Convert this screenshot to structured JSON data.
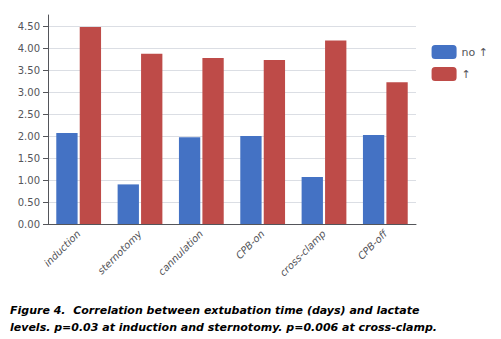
{
  "chart_data": {
    "type": "bar",
    "categories": [
      "induction",
      "sternotomy",
      "cannulation",
      "CPB-on",
      "cross-clamp",
      "CPB-off"
    ],
    "series": [
      {
        "name": "no ↑",
        "color": "#4472C4",
        "values": [
          2.07,
          0.9,
          1.97,
          2.0,
          1.07,
          2.02
        ]
      },
      {
        "name": "↑",
        "color": "#BE4B48",
        "values": [
          4.48,
          3.87,
          3.77,
          3.73,
          4.17,
          3.22
        ]
      }
    ],
    "ylim": [
      0,
      4.75
    ],
    "yticks": [
      {
        "value": 0.0,
        "label": "0.00"
      },
      {
        "value": 0.5,
        "label": "0.50"
      },
      {
        "value": 1.0,
        "label": "1.00"
      },
      {
        "value": 1.5,
        "label": "1.50"
      },
      {
        "value": 2.0,
        "label": "2.00"
      },
      {
        "value": 2.5,
        "label": "2.50"
      },
      {
        "value": 3.0,
        "label": "3.00"
      },
      {
        "value": 3.5,
        "label": "3.50"
      },
      {
        "value": 4.0,
        "label": "4.00"
      },
      {
        "value": 4.5,
        "label": "4.50"
      }
    ],
    "grid": true,
    "legend": "right",
    "annotations": [
      "Figure 4.  Correlation between extubation time (days) and lactate",
      "levels. p=0.03 at induction and sternotomy. p=0.006 at cross-clamp."
    ]
  }
}
